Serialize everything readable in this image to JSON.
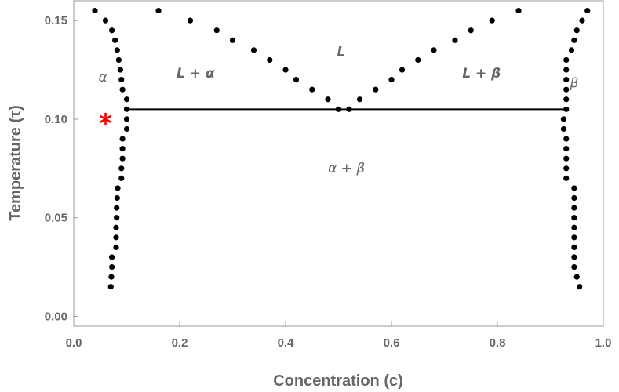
{
  "chart_data": {
    "type": "scatter",
    "title": "",
    "xlabel": "Concentration (c)",
    "ylabel": "Temperature (τ)",
    "xlim": [
      0,
      1
    ],
    "ylim": [
      -0.005,
      0.16
    ],
    "x_ticks": [
      {
        "value": 0.0,
        "label": "0.0"
      },
      {
        "value": 0.2,
        "label": "0.2"
      },
      {
        "value": 0.4,
        "label": "0.4"
      },
      {
        "value": 0.6,
        "label": "0.6"
      },
      {
        "value": 0.8,
        "label": "0.8"
      },
      {
        "value": 1.0,
        "label": "1.0"
      }
    ],
    "y_ticks": [
      {
        "value": 0.0,
        "label": "0.00"
      },
      {
        "value": 0.05,
        "label": "0.05"
      },
      {
        "value": 0.1,
        "label": "0.10"
      },
      {
        "value": 0.15,
        "label": "0.15"
      }
    ],
    "grid": false,
    "series": [
      {
        "color": "#000000",
        "points": [
          [
            0.04,
            0.155
          ],
          [
            0.06,
            0.15
          ],
          [
            0.072,
            0.145
          ],
          [
            0.078,
            0.14
          ],
          [
            0.082,
            0.135
          ],
          [
            0.085,
            0.13
          ],
          [
            0.088,
            0.125
          ],
          [
            0.09,
            0.12
          ],
          [
            0.092,
            0.115
          ],
          [
            0.1,
            0.11
          ],
          [
            0.1,
            0.105
          ],
          [
            0.1,
            0.1
          ],
          [
            0.1,
            0.095
          ],
          [
            0.092,
            0.09
          ],
          [
            0.092,
            0.085
          ],
          [
            0.092,
            0.08
          ],
          [
            0.09,
            0.075
          ],
          [
            0.09,
            0.07
          ],
          [
            0.083,
            0.065
          ],
          [
            0.082,
            0.06
          ],
          [
            0.081,
            0.055
          ],
          [
            0.081,
            0.05
          ],
          [
            0.08,
            0.045
          ],
          [
            0.08,
            0.04
          ],
          [
            0.08,
            0.035
          ],
          [
            0.072,
            0.03
          ],
          [
            0.072,
            0.025
          ],
          [
            0.071,
            0.02
          ],
          [
            0.07,
            0.015
          ]
        ]
      },
      {
        "color": "#000000",
        "points": [
          [
            0.16,
            0.155
          ],
          [
            0.22,
            0.15
          ],
          [
            0.27,
            0.145
          ],
          [
            0.3,
            0.14
          ],
          [
            0.34,
            0.135
          ],
          [
            0.37,
            0.13
          ],
          [
            0.4,
            0.125
          ],
          [
            0.42,
            0.12
          ],
          [
            0.45,
            0.115
          ],
          [
            0.48,
            0.11
          ],
          [
            0.5,
            0.105
          ],
          [
            0.52,
            0.105
          ],
          [
            0.54,
            0.11
          ],
          [
            0.57,
            0.115
          ],
          [
            0.6,
            0.12
          ],
          [
            0.62,
            0.125
          ],
          [
            0.65,
            0.13
          ],
          [
            0.68,
            0.135
          ],
          [
            0.72,
            0.14
          ],
          [
            0.75,
            0.145
          ],
          [
            0.79,
            0.15
          ],
          [
            0.84,
            0.155
          ]
        ]
      },
      {
        "color": "#000000",
        "points": [
          [
            0.97,
            0.155
          ],
          [
            0.96,
            0.15
          ],
          [
            0.95,
            0.145
          ],
          [
            0.945,
            0.14
          ],
          [
            0.94,
            0.135
          ],
          [
            0.93,
            0.13
          ],
          [
            0.93,
            0.125
          ],
          [
            0.93,
            0.12
          ],
          [
            0.93,
            0.115
          ],
          [
            0.93,
            0.11
          ],
          [
            0.93,
            0.105
          ],
          [
            0.925,
            0.1
          ],
          [
            0.925,
            0.095
          ],
          [
            0.93,
            0.09
          ],
          [
            0.93,
            0.085
          ],
          [
            0.93,
            0.08
          ],
          [
            0.93,
            0.075
          ],
          [
            0.93,
            0.07
          ],
          [
            0.945,
            0.065
          ],
          [
            0.945,
            0.06
          ],
          [
            0.945,
            0.055
          ],
          [
            0.945,
            0.05
          ],
          [
            0.945,
            0.045
          ],
          [
            0.945,
            0.04
          ],
          [
            0.945,
            0.035
          ],
          [
            0.945,
            0.03
          ],
          [
            0.945,
            0.025
          ],
          [
            0.95,
            0.02
          ],
          [
            0.955,
            0.015
          ]
        ]
      }
    ],
    "lines": [
      {
        "x": [
          0.1,
          0.925
        ],
        "y": [
          0.105,
          0.105
        ],
        "color": "#000000"
      }
    ],
    "markers": [
      {
        "x": 0.06,
        "y": 0.1,
        "symbol": "*",
        "color": "#ff0000"
      }
    ],
    "annotations": [
      {
        "text": "α",
        "x": 0.055,
        "y": 0.119,
        "italic": true,
        "bold": false
      },
      {
        "text": "L + α",
        "x": 0.23,
        "y": 0.121,
        "italic": true,
        "bold": true
      },
      {
        "text": "L",
        "x": 0.505,
        "y": 0.132,
        "italic": true,
        "bold": true
      },
      {
        "text": "L + β",
        "x": 0.77,
        "y": 0.121,
        "italic": true,
        "bold": true
      },
      {
        "text": "β",
        "x": 0.945,
        "y": 0.116,
        "italic": true,
        "bold": false
      },
      {
        "text": "α + β",
        "x": 0.515,
        "y": 0.073,
        "italic": true,
        "bold": false
      }
    ]
  }
}
